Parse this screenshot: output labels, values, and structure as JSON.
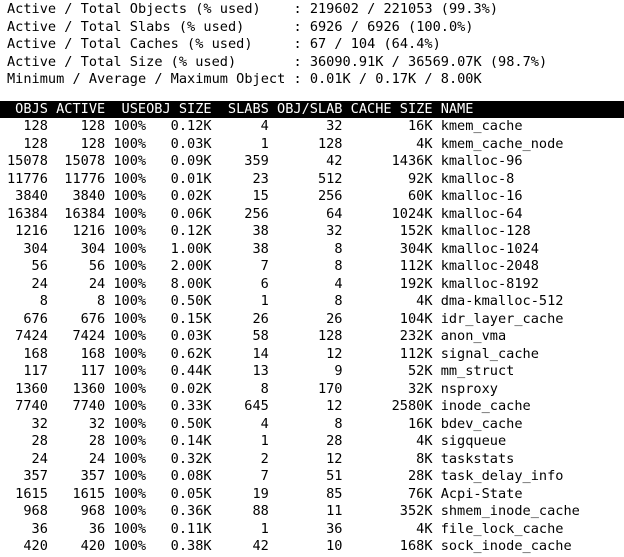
{
  "colors": {
    "background": "#ffffff",
    "text": "#000000",
    "header_bg": "#000000",
    "header_fg": "#ffffff"
  },
  "summary": {
    "colon": ": ",
    "lines": [
      {
        "label": "Active / Total Objects (% used)",
        "value": "219602 / 221053 (99.3%)"
      },
      {
        "label": "Active / Total Slabs (% used)",
        "value": "6926 / 6926 (100.0%)"
      },
      {
        "label": "Active / Total Caches (% used)",
        "value": "67 / 104 (64.4%)"
      },
      {
        "label": "Active / Total Size (% used)",
        "value": "36090.91K / 36569.07K (98.7%)"
      },
      {
        "label": "Minimum / Average / Maximum Object",
        "value": "0.01K / 0.17K / 8.00K"
      }
    ]
  },
  "table": {
    "columns": [
      "OBJS",
      "ACTIVE",
      "USE",
      "OBJ SIZE",
      "SLABS",
      "OBJ/SLAB",
      "CACHE SIZE",
      "NAME"
    ],
    "rows": [
      [
        "128",
        "128",
        "100%",
        "0.12K",
        "4",
        "32",
        "16K",
        "kmem_cache"
      ],
      [
        "128",
        "128",
        "100%",
        "0.03K",
        "1",
        "128",
        "4K",
        "kmem_cache_node"
      ],
      [
        "15078",
        "15078",
        "100%",
        "0.09K",
        "359",
        "42",
        "1436K",
        "kmalloc-96"
      ],
      [
        "11776",
        "11776",
        "100%",
        "0.01K",
        "23",
        "512",
        "92K",
        "kmalloc-8"
      ],
      [
        "3840",
        "3840",
        "100%",
        "0.02K",
        "15",
        "256",
        "60K",
        "kmalloc-16"
      ],
      [
        "16384",
        "16384",
        "100%",
        "0.06K",
        "256",
        "64",
        "1024K",
        "kmalloc-64"
      ],
      [
        "1216",
        "1216",
        "100%",
        "0.12K",
        "38",
        "32",
        "152K",
        "kmalloc-128"
      ],
      [
        "304",
        "304",
        "100%",
        "1.00K",
        "38",
        "8",
        "304K",
        "kmalloc-1024"
      ],
      [
        "56",
        "56",
        "100%",
        "2.00K",
        "7",
        "8",
        "112K",
        "kmalloc-2048"
      ],
      [
        "24",
        "24",
        "100%",
        "8.00K",
        "6",
        "4",
        "192K",
        "kmalloc-8192"
      ],
      [
        "8",
        "8",
        "100%",
        "0.50K",
        "1",
        "8",
        "4K",
        "dma-kmalloc-512"
      ],
      [
        "676",
        "676",
        "100%",
        "0.15K",
        "26",
        "26",
        "104K",
        "idr_layer_cache"
      ],
      [
        "7424",
        "7424",
        "100%",
        "0.03K",
        "58",
        "128",
        "232K",
        "anon_vma"
      ],
      [
        "168",
        "168",
        "100%",
        "0.62K",
        "14",
        "12",
        "112K",
        "signal_cache"
      ],
      [
        "117",
        "117",
        "100%",
        "0.44K",
        "13",
        "9",
        "52K",
        "mm_struct"
      ],
      [
        "1360",
        "1360",
        "100%",
        "0.02K",
        "8",
        "170",
        "32K",
        "nsproxy"
      ],
      [
        "7740",
        "7740",
        "100%",
        "0.33K",
        "645",
        "12",
        "2580K",
        "inode_cache"
      ],
      [
        "32",
        "32",
        "100%",
        "0.50K",
        "4",
        "8",
        "16K",
        "bdev_cache"
      ],
      [
        "28",
        "28",
        "100%",
        "0.14K",
        "1",
        "28",
        "4K",
        "sigqueue"
      ],
      [
        "24",
        "24",
        "100%",
        "0.32K",
        "2",
        "12",
        "8K",
        "taskstats"
      ],
      [
        "357",
        "357",
        "100%",
        "0.08K",
        "7",
        "51",
        "28K",
        "task_delay_info"
      ],
      [
        "1615",
        "1615",
        "100%",
        "0.05K",
        "19",
        "85",
        "76K",
        "Acpi-State"
      ],
      [
        "968",
        "968",
        "100%",
        "0.36K",
        "88",
        "11",
        "352K",
        "shmem_inode_cache"
      ],
      [
        "36",
        "36",
        "100%",
        "0.11K",
        "1",
        "36",
        "4K",
        "file_lock_cache"
      ],
      [
        "420",
        "420",
        "100%",
        "0.38K",
        "42",
        "10",
        "168K",
        "sock_inode_cache"
      ]
    ]
  }
}
